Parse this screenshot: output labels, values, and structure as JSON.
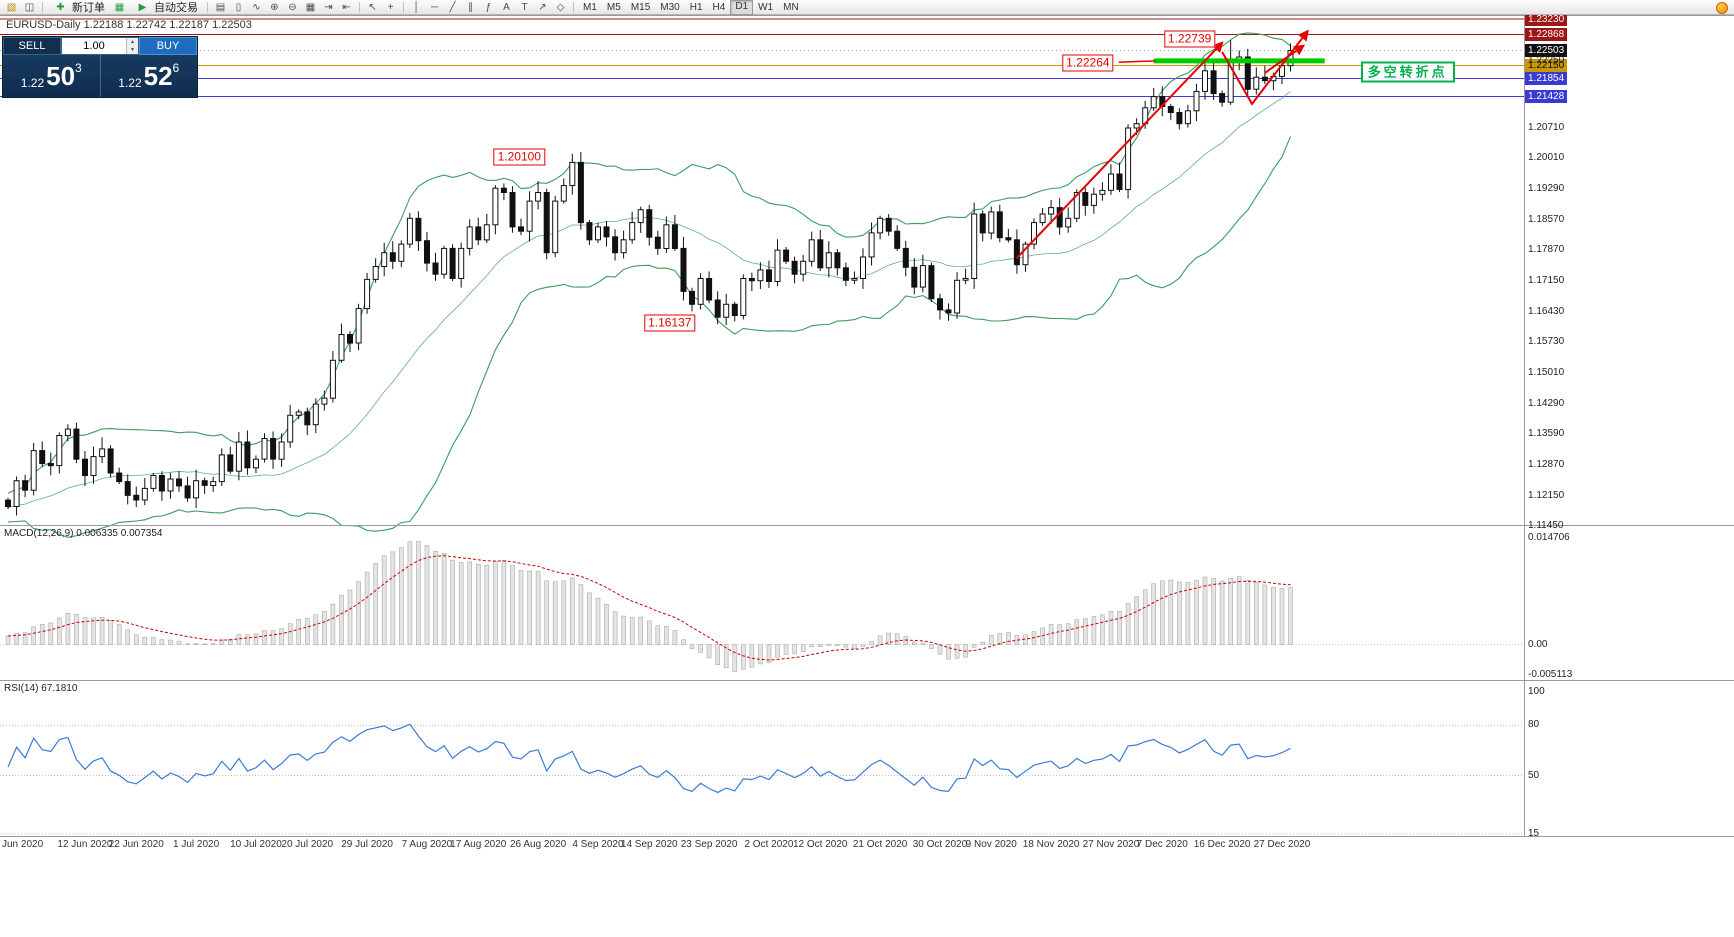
{
  "colors": {
    "bear_red": "#9e1515",
    "gold": "#c99700",
    "blue_line": "#3b3bd1",
    "band_green": "#3a9d5d",
    "signal_red": "#cc0000",
    "rsi_blue": "#3a7bd5",
    "annotation_red": "#e60000",
    "bright_green": "#00cc00",
    "turn_green": "#00b050"
  },
  "toolbar": {
    "new_order": "新订单",
    "auto_trading": "自动交易",
    "timeframes": [
      "M1",
      "M5",
      "M15",
      "M30",
      "H1",
      "H4",
      "D1",
      "W1",
      "MN"
    ],
    "active_timeframe": "D1",
    "icons": [
      {
        "name": "new-chart-icon",
        "glyph": "▧"
      },
      {
        "name": "profiles-icon",
        "glyph": "◫"
      },
      {
        "name": "new-order-plus-icon",
        "glyph": "✚"
      },
      {
        "name": "market-chart-icon",
        "glyph": "▦"
      },
      {
        "name": "auto-trading-play-icon",
        "glyph": "▶"
      },
      {
        "name": "bar-chart-icon",
        "glyph": "▤"
      },
      {
        "name": "candlestick-chart-icon",
        "glyph": "▯"
      },
      {
        "name": "line-chart-icon",
        "glyph": "∿"
      },
      {
        "name": "zoom-in-icon",
        "glyph": "⊕"
      },
      {
        "name": "zoom-out-icon",
        "glyph": "⊖"
      },
      {
        "name": "tile-windows-icon",
        "glyph": "▦"
      },
      {
        "name": "auto-scroll-icon",
        "glyph": "⇥"
      },
      {
        "name": "chart-shift-icon",
        "glyph": "⇤"
      },
      {
        "name": "cursor-icon",
        "glyph": "↖"
      },
      {
        "name": "crosshair-icon",
        "glyph": "+"
      },
      {
        "name": "vertical-line-icon",
        "glyph": "│"
      },
      {
        "name": "horizontal-line-icon",
        "glyph": "─"
      },
      {
        "name": "trendline-icon",
        "glyph": "╱"
      },
      {
        "name": "channel-icon",
        "glyph": "∥"
      },
      {
        "name": "fibonacci-icon",
        "glyph": "ƒ"
      },
      {
        "name": "text-icon",
        "glyph": "A"
      },
      {
        "name": "label-icon",
        "glyph": "T"
      },
      {
        "name": "arrow-tool-icon",
        "glyph": "↗"
      },
      {
        "name": "shapes-icon",
        "glyph": "◇"
      }
    ]
  },
  "chart": {
    "title": "EURUSD-Daily  1.22188 1.22742 1.22187 1.22503"
  },
  "one_click": {
    "sell_label": "SELL",
    "buy_label": "BUY",
    "volume": "1.00",
    "sell_price": {
      "prefix": "1.22",
      "big": "50",
      "sup": "3"
    },
    "buy_price": {
      "prefix": "1.22",
      "big": "52",
      "sup": "6"
    }
  },
  "price_axis": {
    "special": [
      {
        "t": "1.23230",
        "p": 1.2323,
        "bg": "#9e1515",
        "fg": "#ffffff",
        "line": "#9e1515"
      },
      {
        "t": "1.22868",
        "p": 1.22868,
        "bg": "#9e1515",
        "fg": "#ffffff",
        "line": "#9e1515"
      },
      {
        "t": "1.22503",
        "p": 1.22503,
        "bg": "#111111",
        "fg": "#ffffff",
        "line": "#aaaaaa",
        "dash": "1,3"
      },
      {
        "t": "1.22150",
        "p": 1.2215,
        "bg": "#c99700",
        "fg": "#111111",
        "line": "#c99700"
      },
      {
        "t": "1.21854",
        "p": 1.21854,
        "bg": "#3b3bd1",
        "fg": "#ffffff",
        "line": "#3b3bd1"
      },
      {
        "t": "1.21428",
        "p": 1.21428,
        "bg": "#3b3bd1",
        "fg": "#ffffff",
        "line": "#3b3bd1"
      }
    ],
    "plain": [
      "1.22250",
      "1.20710",
      "1.20010",
      "1.19290",
      "1.18570",
      "1.17870",
      "1.17150",
      "1.16430",
      "1.15730",
      "1.15010",
      "1.14290",
      "1.13590",
      "1.12870",
      "1.12150",
      "1.11450"
    ]
  },
  "macd": {
    "title": "MACD(12,26,9) 0.006335 0.007354",
    "axis_top": "0.014706",
    "axis_zero": "0.00",
    "axis_bottom": "-0.005113"
  },
  "rsi": {
    "title": "RSI(14) 67.1810",
    "levels": [
      {
        "t": "100",
        "v": 100
      },
      {
        "t": "80",
        "v": 80
      },
      {
        "t": "50",
        "v": 50
      },
      {
        "t": "15",
        "v": 15
      }
    ]
  },
  "chart_data": {
    "type": "candlestick",
    "symbol": "EURUSD",
    "timeframe": "Daily",
    "indicators": {
      "bollinger": {
        "period": 20,
        "deviation": 2
      },
      "macd": {
        "fast": 12,
        "slow": 26,
        "signal": 9
      },
      "rsi": {
        "period": 14
      }
    },
    "price_range": {
      "top": 1.2335,
      "bottom": 1.1147
    },
    "pre_closes": [
      1.115,
      1.116,
      1.1145,
      1.117,
      1.1165,
      1.118,
      1.117,
      1.1185,
      1.1175,
      1.119,
      1.118,
      1.1195,
      1.1185,
      1.12,
      1.119,
      1.1205,
      1.1195,
      1.121,
      1.12,
      1.1215,
      1.1205
    ],
    "closes": [
      1.119,
      1.125,
      1.1228,
      1.132,
      1.129,
      1.1285,
      1.1355,
      1.137,
      1.13,
      1.1262,
      1.1306,
      1.1324,
      1.1268,
      1.1248,
      1.1216,
      1.1205,
      1.1232,
      1.1262,
      1.1226,
      1.1254,
      1.1238,
      1.121,
      1.125,
      1.1239,
      1.1248,
      1.131,
      1.1272,
      1.134,
      1.128,
      1.13,
      1.1348,
      1.13,
      1.134,
      1.1402,
      1.141,
      1.138,
      1.1428,
      1.1442,
      1.153,
      1.159,
      1.157,
      1.165,
      1.1718,
      1.1748,
      1.178,
      1.176,
      1.18,
      1.186,
      1.1808,
      1.1756,
      1.173,
      1.179,
      1.172,
      1.179,
      1.184,
      1.181,
      1.1845,
      1.193,
      1.192,
      1.184,
      1.183,
      1.19,
      1.192,
      1.178,
      1.19,
      1.1936,
      1.199,
      1.185,
      1.181,
      1.184,
      1.1817,
      1.178,
      1.181,
      1.185,
      1.188,
      1.1816,
      1.179,
      1.1845,
      1.179,
      1.169,
      1.166,
      1.172,
      1.167,
      1.163,
      1.166,
      1.1634,
      1.172,
      1.1715,
      1.174,
      1.1713,
      1.1786,
      1.176,
      1.173,
      1.176,
      1.181,
      1.1745,
      1.178,
      1.1745,
      1.1716,
      1.172,
      1.177,
      1.1826,
      1.186,
      1.183,
      1.179,
      1.1746,
      1.17,
      1.175,
      1.1673,
      1.1647,
      1.164,
      1.1716,
      1.172,
      1.187,
      1.1826,
      1.1875,
      1.1815,
      1.181,
      1.1752,
      1.18,
      1.185,
      1.187,
      1.1885,
      1.184,
      1.186,
      1.192,
      1.189,
      1.1916,
      1.1925,
      1.1963,
      1.1927,
      1.207,
      1.208,
      1.2117,
      1.2143,
      1.212,
      1.2106,
      1.208,
      1.211,
      1.2155,
      1.2203,
      1.215,
      1.213,
      1.2225,
      1.2235,
      1.216,
      1.2188,
      1.218,
      1.219,
      1.2215,
      1.225
    ],
    "overrides": [
      {
        "i": 66,
        "high": 1.201
      },
      {
        "i": 83,
        "low": 1.16137
      },
      {
        "i": 143,
        "high": 1.22739
      }
    ],
    "date_ticks": [
      {
        "label": "Jun 2020",
        "i": 0
      },
      {
        "label": "12 Jun 2020",
        "i": 9
      },
      {
        "label": "22 Jun 2020",
        "i": 15
      },
      {
        "label": "1 Jul 2020",
        "i": 22
      },
      {
        "label": "10 Jul 2020",
        "i": 29
      },
      {
        "label": "20 Jul 2020",
        "i": 35
      },
      {
        "label": "29 Jul 2020",
        "i": 42
      },
      {
        "label": "7 Aug 2020",
        "i": 49
      },
      {
        "label": "17 Aug 2020",
        "i": 55
      },
      {
        "label": "26 Aug 2020",
        "i": 62
      },
      {
        "label": "4 Sep 2020",
        "i": 69
      },
      {
        "label": "14 Sep 2020",
        "i": 75
      },
      {
        "label": "23 Sep 2020",
        "i": 82
      },
      {
        "label": "2 Oct 2020",
        "i": 89
      },
      {
        "label": "12 Oct 2020",
        "i": 95
      },
      {
        "label": "21 Oct 2020",
        "i": 102
      },
      {
        "label": "30 Oct 2020",
        "i": 109
      },
      {
        "label": "9 Nov 2020",
        "i": 115
      },
      {
        "label": "18 Nov 2020",
        "i": 122
      },
      {
        "label": "27 Nov 2020",
        "i": 129
      },
      {
        "label": "7 Dec 2020",
        "i": 135
      },
      {
        "label": "16 Dec 2020",
        "i": 142
      },
      {
        "label": "27 Dec 2020",
        "i": 149
      }
    ],
    "annotations": {
      "boxes": [
        {
          "text": "1.22739",
          "i": 138.2,
          "price": 1.2277
        },
        {
          "text": "1.22264",
          "i": 126.3,
          "price": 1.2222,
          "connector": {
            "from": [
              129.9,
              1.2223
            ],
            "to": [
              134.2,
              1.2226
            ]
          }
        },
        {
          "text": "1.20100",
          "i": 59.8,
          "price": 1.2002
        },
        {
          "text": "1.16137",
          "i": 77.4,
          "price": 1.1617
        }
      ],
      "turn_label": {
        "text": "多空转折点",
        "i": 163.7,
        "price": 1.2199
      },
      "green_line": {
        "i1": 134.0,
        "i2": 154.0,
        "price": 1.2226,
        "width": 5
      },
      "trend_lines": [
        {
          "pts": [
            [
              118,
              1.1768
            ],
            [
              142,
              1.2268
            ]
          ]
        },
        {
          "pts": [
            [
              142,
              1.2247
            ],
            [
              145.5,
              1.2126
            ],
            [
              152,
              1.2295
            ]
          ]
        },
        {
          "pts": [
            [
              147,
              1.2198
            ],
            [
              151.5,
              1.2261
            ]
          ]
        }
      ]
    }
  }
}
